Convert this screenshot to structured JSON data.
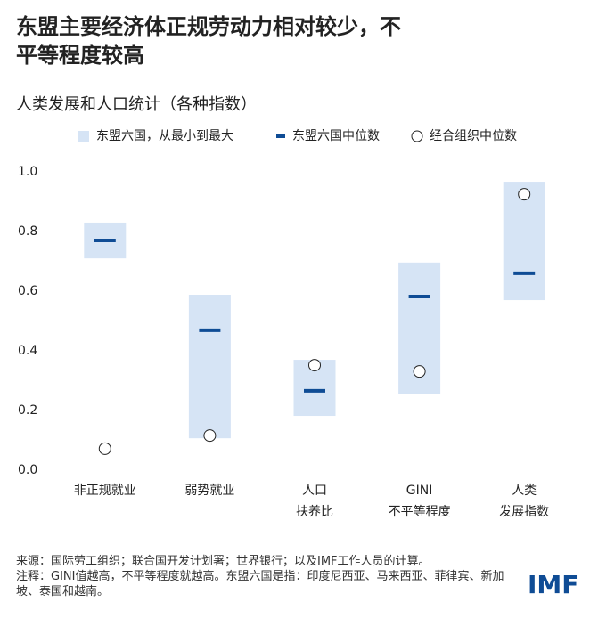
{
  "chart_data": {
    "type": "range",
    "title": "东盟主要经济体正规劳动力相对较少，不平等程度较高",
    "subtitle": "人类发展和人口统计（各种指数）",
    "categories": [
      [
        "非正规就业"
      ],
      [
        "弱势就业"
      ],
      [
        "人口",
        "扶养比"
      ],
      [
        "GINI",
        "不平等程度"
      ],
      [
        "人类",
        "发展指数"
      ]
    ],
    "series": [
      {
        "name": "东盟六国，从最小到最大",
        "color": "#d6e4f5",
        "low": [
          0.71,
          0.107,
          0.182,
          0.254,
          0.57
        ],
        "high": [
          0.83,
          0.588,
          0.37,
          0.696,
          0.967
        ]
      },
      {
        "name": "东盟六国中位数",
        "color": "#0f4c95",
        "values": [
          0.77,
          0.469,
          0.266,
          0.582,
          0.66
        ]
      },
      {
        "name": "经合组织中位数",
        "color": "#ffffff",
        "values": [
          0.072,
          0.116,
          0.352,
          0.331,
          0.925
        ]
      }
    ],
    "ylim": [
      0,
      1
    ],
    "yticks": [
      {
        "value": 0,
        "label": "0.0"
      },
      0.2,
      0.4,
      0.6,
      0.8,
      {
        "value": 1,
        "label": "1.0"
      }
    ],
    "source": "来源：国际劳工组织；联合国开发计划署；世界银行；以及IMF工作人员的计算。",
    "note": "注释：GINI值越高，不平等程度就越高。东盟六国是指：印度尼西亚、马来西亚、菲律宾、新加坡、泰国和越南。",
    "logo": "IMF"
  }
}
